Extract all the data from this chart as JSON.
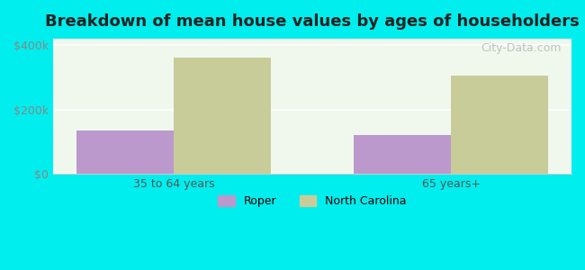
{
  "title": "Breakdown of mean house values by ages of householders",
  "categories": [
    "35 to 64 years",
    "65 years+"
  ],
  "roper_values": [
    135000,
    120000
  ],
  "nc_values": [
    360000,
    305000
  ],
  "roper_color": "#bb99cc",
  "nc_color": "#c8cc99",
  "background_color": "#00eeee",
  "plot_bg_color": "#f0f8ee",
  "ylim": [
    0,
    420000
  ],
  "yticks": [
    0,
    200000,
    400000
  ],
  "ytick_labels": [
    "$0",
    "$200k",
    "$400k"
  ],
  "legend_roper": "Roper",
  "legend_nc": "North Carolina",
  "bar_width": 0.35,
  "watermark": "City-Data.com"
}
